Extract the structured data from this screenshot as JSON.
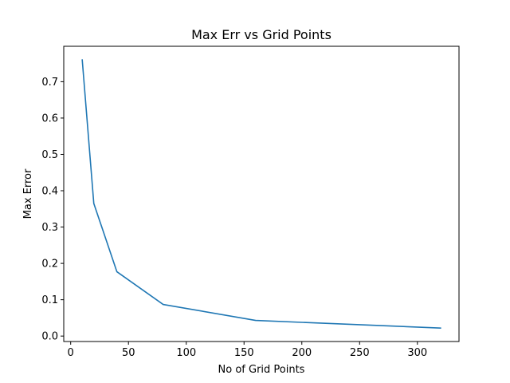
{
  "chart_data": {
    "type": "line",
    "title": "Max Err vs Grid Points",
    "xlabel": "No of Grid Points",
    "ylabel": "Max Error",
    "xlim": [
      -6,
      336
    ],
    "ylim": [
      -0.015,
      0.7975
    ],
    "x_ticks": [
      0,
      50,
      100,
      150,
      200,
      250,
      300
    ],
    "y_ticks": [
      0.0,
      0.1,
      0.2,
      0.3,
      0.4,
      0.5,
      0.6,
      0.7
    ],
    "grid": false,
    "series": [
      {
        "color": "#1f77b4",
        "x": [
          10,
          20,
          40,
          80,
          160,
          320
        ],
        "y": [
          0.76,
          0.365,
          0.177,
          0.087,
          0.043,
          0.022
        ]
      }
    ]
  }
}
